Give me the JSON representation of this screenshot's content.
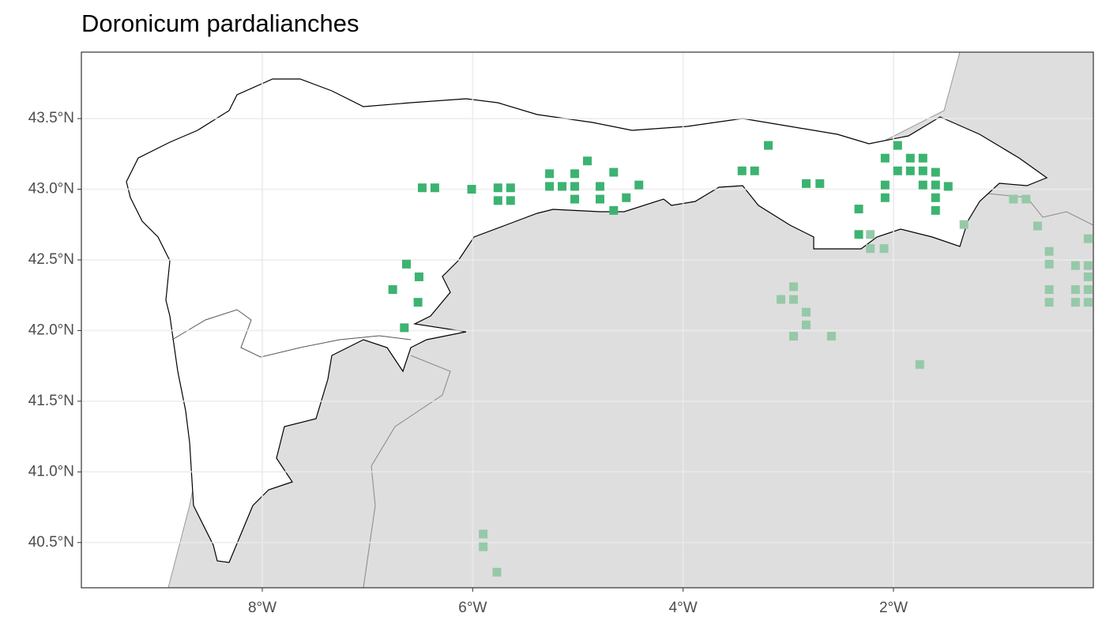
{
  "chart_data": {
    "type": "scatter",
    "title": "Doronicum pardalianches",
    "xlim": [
      -9.72,
      -0.1
    ],
    "ylim": [
      40.18,
      43.97
    ],
    "xticks": [
      {
        "value": -8,
        "label": "8°W"
      },
      {
        "value": -6,
        "label": "6°W"
      },
      {
        "value": -4,
        "label": "4°W"
      },
      {
        "value": -2,
        "label": "2°W"
      }
    ],
    "yticks": [
      {
        "value": 40.5,
        "label": "40.5°N"
      },
      {
        "value": 41.0,
        "label": "41.0°N"
      },
      {
        "value": 41.5,
        "label": "41.5°N"
      },
      {
        "value": 42.0,
        "label": "42.0°N"
      },
      {
        "value": 42.5,
        "label": "42.5°N"
      },
      {
        "value": 43.0,
        "label": "43.0°N"
      },
      {
        "value": 43.5,
        "label": "43.5°N"
      }
    ],
    "grid": true,
    "series": [
      {
        "color": "#3cb371",
        "x": [
          -6.48,
          -6.36,
          -6.01,
          -5.76,
          -5.64,
          -5.76,
          -5.64,
          -5.27,
          -5.27,
          -5.15,
          -5.03,
          -5.03,
          -5.03,
          -4.91,
          -4.79,
          -4.79,
          -4.66,
          -4.66,
          -4.54,
          -4.42,
          -3.44,
          -3.32,
          -3.19,
          -2.83,
          -2.7,
          -2.33,
          -2.33,
          -2.08,
          -2.08,
          -2.08,
          -1.96,
          -1.96,
          -1.84,
          -1.84,
          -1.72,
          -1.72,
          -1.72,
          -1.6,
          -1.6,
          -1.6,
          -1.6,
          -1.48,
          -6.63,
          -6.51,
          -6.76,
          -6.52,
          -6.65
        ],
        "values": [
          43.01,
          43.01,
          43.0,
          43.01,
          43.01,
          42.92,
          42.92,
          43.11,
          43.02,
          43.02,
          43.11,
          43.02,
          42.93,
          43.2,
          43.02,
          42.93,
          43.12,
          42.85,
          42.94,
          43.03,
          43.13,
          43.13,
          43.31,
          43.04,
          43.04,
          42.86,
          42.68,
          43.22,
          43.03,
          42.94,
          43.31,
          43.13,
          43.22,
          43.13,
          43.22,
          43.13,
          43.03,
          43.12,
          43.03,
          42.94,
          42.85,
          43.02,
          42.47,
          42.38,
          42.29,
          42.2,
          42.02
        ]
      },
      {
        "color": "#96c9a8",
        "x": [
          -2.22,
          -2.22,
          -2.09,
          -2.95,
          -3.07,
          -2.95,
          -2.83,
          -2.83,
          -2.95,
          -2.59,
          -1.75,
          -1.33,
          -0.86,
          -0.74,
          -0.63,
          -0.52,
          -0.52,
          -0.52,
          -0.52,
          -0.27,
          -0.15,
          -0.15,
          -0.15,
          -0.27,
          -0.15,
          -0.27,
          -0.15,
          -5.9,
          -5.9,
          -5.77
        ],
        "values": [
          42.68,
          42.58,
          42.58,
          42.31,
          42.22,
          42.22,
          42.13,
          42.04,
          41.96,
          41.96,
          41.76,
          42.75,
          42.93,
          42.93,
          42.74,
          42.56,
          42.47,
          42.29,
          42.2,
          42.46,
          42.46,
          42.65,
          42.38,
          42.29,
          42.29,
          42.2,
          42.2,
          40.56,
          40.47,
          40.29
        ]
      }
    ]
  }
}
